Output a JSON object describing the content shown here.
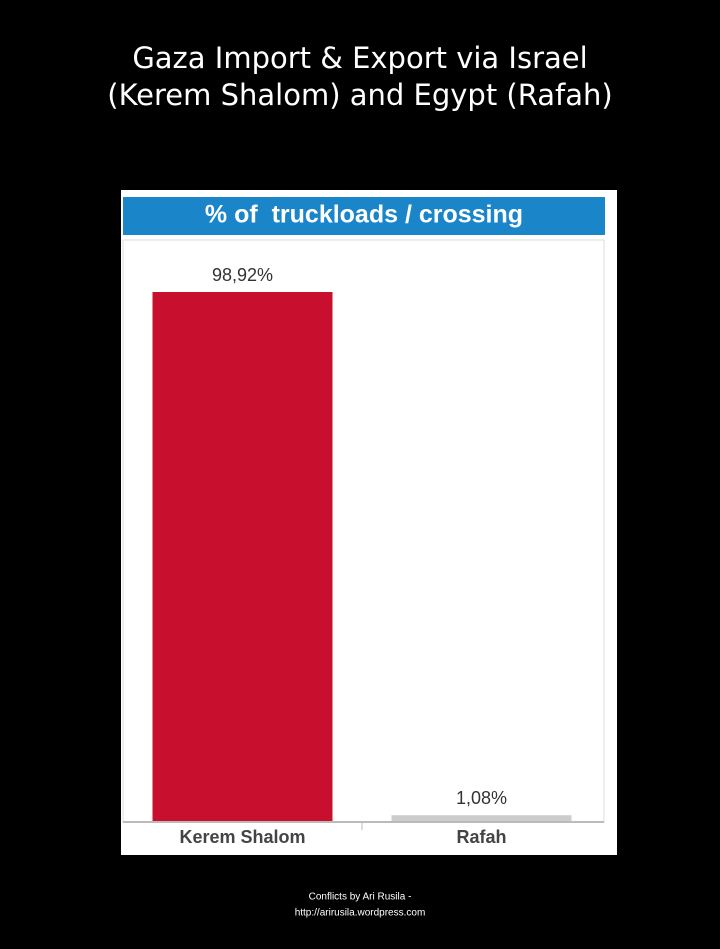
{
  "header": {
    "title_lines": [
      "Gaza Import & Export via Israel",
      "(Kerem Shalom) and Egypt (Rafah)"
    ]
  },
  "chart_data": {
    "type": "bar",
    "title": "% of  truckloads / crossing",
    "categories": [
      "Kerem Shalom",
      "Rafah"
    ],
    "values": [
      98.92,
      1.08
    ],
    "value_labels": [
      "98,92%",
      "1,08%"
    ],
    "colors": [
      "#c8102e",
      "#cccccc"
    ]
  },
  "footer": {
    "lines": [
      "Conflicts by Ari Rusila -",
      "http://arirusila.wordpress.com"
    ]
  }
}
